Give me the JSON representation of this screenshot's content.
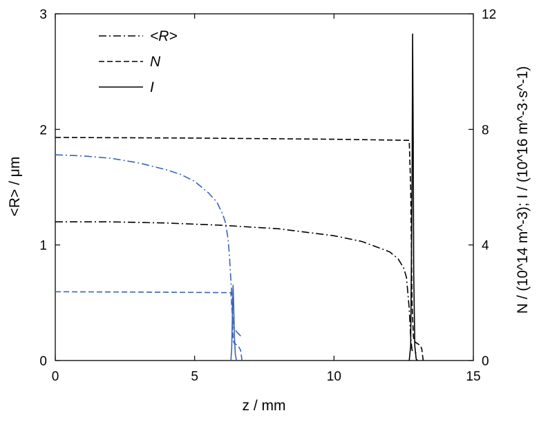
{
  "chart_data": {
    "type": "line",
    "xlabel": "z / mm",
    "ylabel_left": "<R> / μm",
    "ylabel_right": "N / (10^14 m^-3); I / (10^16 m^-3·s^-1)",
    "xlim": [
      0,
      15
    ],
    "ylim_left": [
      0,
      3
    ],
    "ylim_right": [
      0,
      12
    ],
    "x_ticks": [
      0,
      5,
      10,
      15
    ],
    "y_ticks_left": [
      0,
      1,
      2,
      3
    ],
    "y_ticks_right": [
      0,
      4,
      8,
      12
    ],
    "grid": false,
    "legend": {
      "position": "top-left",
      "entries": [
        {
          "label": "<R>",
          "style": "dash-dot"
        },
        {
          "label": "N",
          "style": "dashed"
        },
        {
          "label": "I",
          "style": "solid"
        }
      ]
    },
    "series": [
      {
        "style": "dash-dot",
        "color": "#000000",
        "axis": "left",
        "x": [
          0,
          2,
          4,
          6,
          8,
          10,
          11,
          12,
          12.3,
          12.5,
          12.6,
          12.7,
          12.75,
          12.8,
          12.9,
          13.0
        ],
        "y": [
          1.2,
          1.2,
          1.19,
          1.17,
          1.14,
          1.08,
          1.03,
          0.94,
          0.88,
          0.8,
          0.72,
          0.45,
          0.2,
          0.09,
          0.07,
          0.06
        ]
      },
      {
        "style": "dashed",
        "color": "#000000",
        "axis": "right",
        "x": [
          0,
          5,
          10,
          12.7,
          12.75,
          12.8,
          12.85,
          12.9,
          13.0,
          13.1,
          13.15,
          13.2
        ],
        "y": [
          7.72,
          7.7,
          7.66,
          7.62,
          6.0,
          2.0,
          0.8,
          0.65,
          0.58,
          0.52,
          0.4,
          0
        ]
      },
      {
        "style": "solid",
        "color": "#000000",
        "axis": "right",
        "x": [
          12.7,
          12.75,
          12.8,
          12.82,
          12.84,
          12.86,
          12.9,
          12.95,
          13.0
        ],
        "y": [
          0,
          0.5,
          6.0,
          11.3,
          8.0,
          3.0,
          0.5,
          0.05,
          0
        ]
      },
      {
        "style": "dash-dot",
        "color": "#3a62b7",
        "axis": "left",
        "x": [
          0,
          1,
          2,
          3,
          4,
          4.5,
          5,
          5.5,
          5.8,
          6.0,
          6.1,
          6.2,
          6.25,
          6.3,
          6.35,
          6.38,
          6.5,
          6.7
        ],
        "y": [
          1.78,
          1.77,
          1.75,
          1.71,
          1.65,
          1.61,
          1.55,
          1.45,
          1.37,
          1.27,
          1.2,
          1.05,
          0.9,
          0.7,
          0.5,
          0.3,
          0.25,
          0.2
        ]
      },
      {
        "style": "dashed",
        "color": "#3a62b7",
        "axis": "right",
        "x": [
          0,
          3,
          6.3,
          6.35,
          6.38,
          6.42,
          6.5,
          6.6,
          6.65,
          6.7
        ],
        "y": [
          2.38,
          2.37,
          2.35,
          1.6,
          0.7,
          0.6,
          0.55,
          0.45,
          0.35,
          0
        ]
      },
      {
        "style": "solid",
        "color": "#3a62b7",
        "axis": "right",
        "x": [
          6.3,
          6.33,
          6.36,
          6.38,
          6.4,
          6.43,
          6.46,
          6.5
        ],
        "y": [
          0,
          0.4,
          1.8,
          2.6,
          2.0,
          0.8,
          0.2,
          0
        ]
      }
    ]
  }
}
